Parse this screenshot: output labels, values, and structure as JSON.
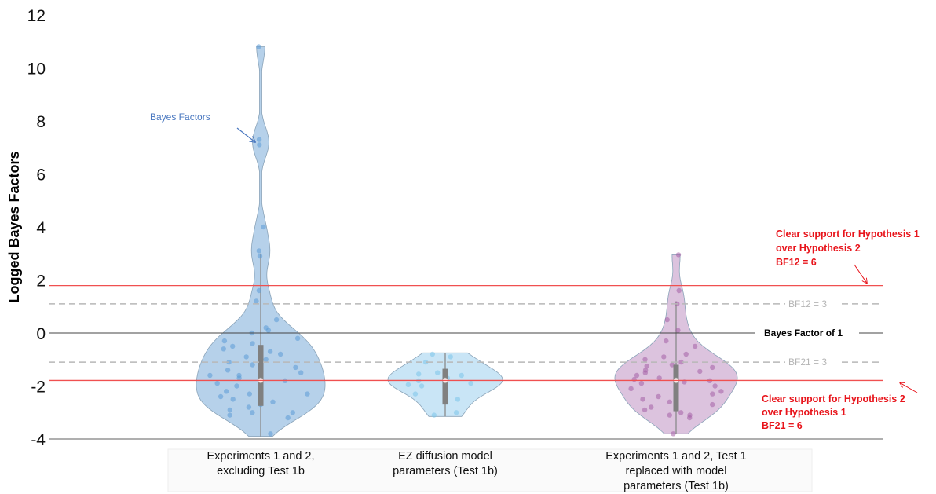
{
  "chart_data": {
    "type": "violin",
    "ylabel": "Logged Bayes Factors",
    "ylim": [
      -4,
      12
    ],
    "yticks": [
      -4,
      -2,
      0,
      2,
      4,
      6,
      8,
      10,
      12
    ],
    "colors": {
      "violin_1": "#a9c9e6",
      "violin_2": "#bfe1f5",
      "violin_3": "#d6b8d8",
      "points_1": "#5b9bd5",
      "points_2": "#7ac4ea",
      "points_3": "#a45ea6",
      "threshold_red": "#f05050",
      "threshold_gray": "#b8b8b8",
      "box": "#808080"
    },
    "series": [
      {
        "label_lines": [
          "Experiments 1 and 2,",
          "excluding Test 1b"
        ],
        "center": -1.79,
        "box": [
          -2.75,
          -0.45
        ],
        "whisker": [
          -3.9,
          3.0
        ],
        "max": 10.8,
        "min": -3.9,
        "points": [
          -3.8,
          -3.2,
          -3.1,
          -3.0,
          -3.0,
          -2.9,
          -2.8,
          -2.7,
          -2.6,
          -2.5,
          -2.4,
          -2.3,
          -2.3,
          -2.2,
          -2.1,
          -2.0,
          -1.9,
          -1.8,
          -1.7,
          -1.6,
          -1.6,
          -1.5,
          -1.4,
          -1.3,
          -1.2,
          -1.1,
          -1.0,
          -0.9,
          -0.8,
          -0.7,
          -0.6,
          -0.5,
          -0.4,
          -0.3,
          -0.2,
          0.0,
          0.1,
          0.2,
          0.5,
          1.2,
          1.6,
          2.9,
          3.1,
          4.0,
          7.1,
          7.3,
          10.8
        ]
      },
      {
        "label_lines": [
          "EZ diffusion model",
          "parameters (Test 1b)"
        ],
        "center": -1.79,
        "box": [
          -2.7,
          -1.35
        ],
        "whisker": [
          -3.15,
          -0.75
        ],
        "max": -0.75,
        "min": -3.15,
        "points": [
          -3.1,
          -3.0,
          -2.5,
          -2.3,
          -2.0,
          -1.95,
          -1.9,
          -1.8,
          -1.7,
          -1.6,
          -1.55,
          -1.5,
          -1.1,
          -0.9,
          -0.8
        ]
      },
      {
        "label_lines": [
          "Experiments 1 and 2, Test 1",
          "replaced with model",
          "parameters (Test 1b)"
        ],
        "center": -1.79,
        "box": [
          -2.95,
          -1.2
        ],
        "whisker": [
          -3.8,
          1.2
        ],
        "max": 2.95,
        "min": -3.8,
        "points": [
          -3.8,
          -3.2,
          -3.1,
          -3.1,
          -3.0,
          -2.9,
          -2.8,
          -2.7,
          -2.6,
          -2.5,
          -2.4,
          -2.3,
          -2.2,
          -2.1,
          -2.0,
          -1.9,
          -1.85,
          -1.8,
          -1.75,
          -1.7,
          -1.6,
          -1.5,
          -1.45,
          -1.4,
          -1.3,
          -1.25,
          -1.2,
          -1.1,
          -1.0,
          -0.9,
          -0.8,
          -0.5,
          -0.3,
          0.1,
          0.5,
          1.1,
          1.6,
          2.95
        ]
      }
    ],
    "reference_lines": [
      {
        "y": 1.79,
        "style": "red-solid",
        "label_lines": [
          "Clear support for Hypothesis 1",
          "over Hypothesis 2",
          "BF12 = 6"
        ]
      },
      {
        "y": 1.1,
        "style": "gray-dashed",
        "label_lines": [
          "BF12 = 3"
        ]
      },
      {
        "y": 0,
        "style": "black-solid",
        "label_lines": [
          "Bayes Factor of 1"
        ]
      },
      {
        "y": -1.1,
        "style": "gray-dashed",
        "label_lines": [
          "BF21 = 3"
        ]
      },
      {
        "y": -1.79,
        "style": "red-solid",
        "label_lines": [
          "Clear support for Hypothesis 2",
          "over Hypothesis 1",
          "BF21 = 6"
        ]
      }
    ],
    "annotation": {
      "text": "Bayes Factors",
      "target_y": 7.2
    }
  }
}
